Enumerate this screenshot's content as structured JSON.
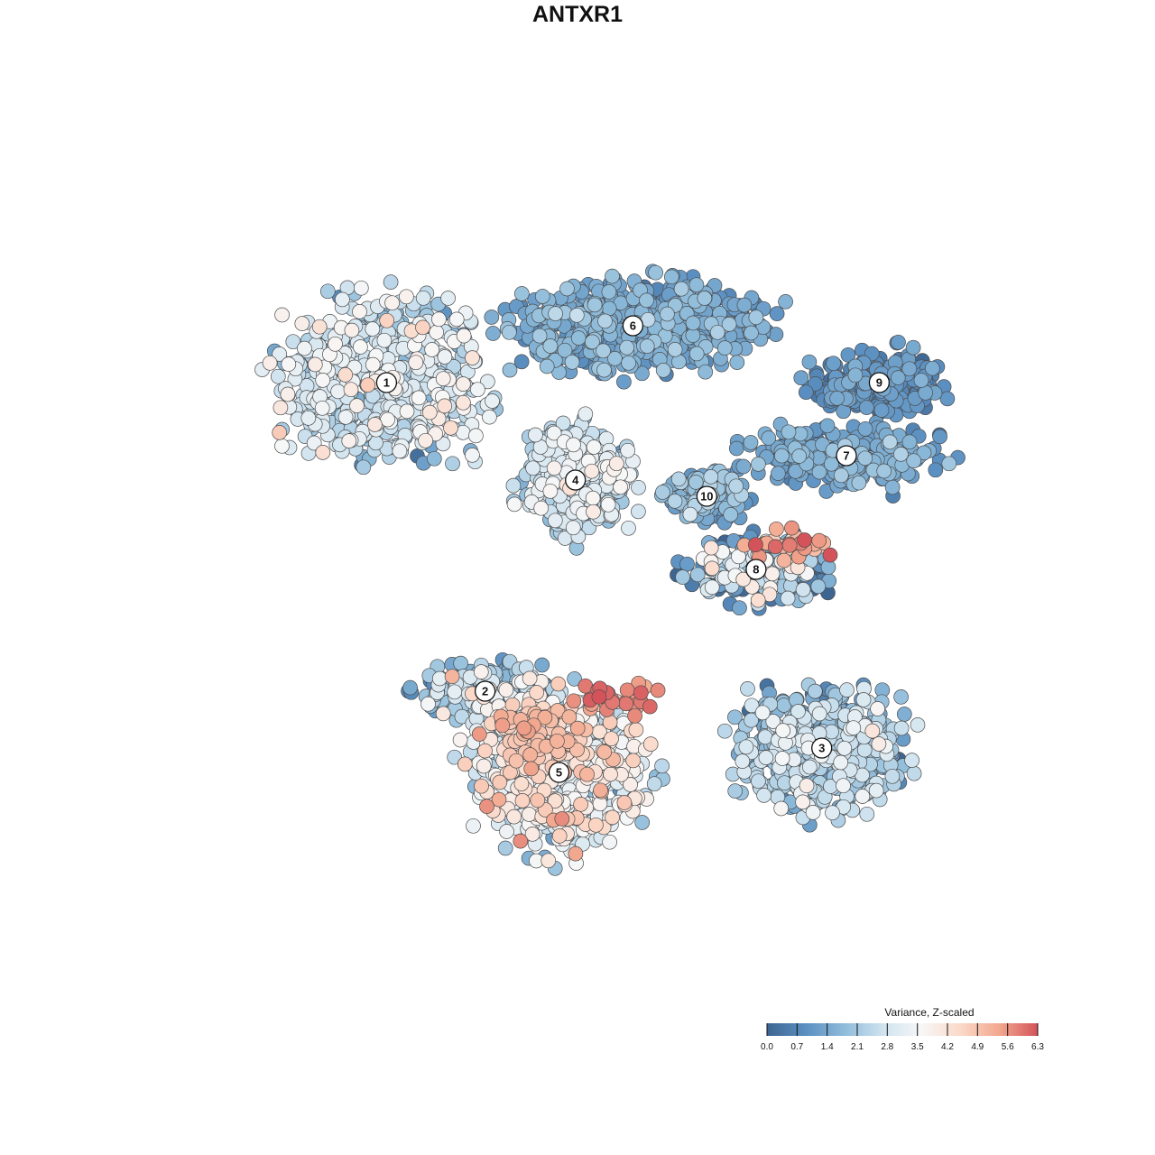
{
  "chart_data": {
    "type": "scatter",
    "title": "ANTXR1",
    "legend": {
      "title": "Variance, Z-scaled",
      "placement": "bottom-right",
      "ticks": [
        "0.0",
        "0.7",
        "1.4",
        "2.1",
        "2.8",
        "3.5",
        "4.2",
        "4.9",
        "5.6",
        "6.3"
      ],
      "range": [
        0,
        6.3
      ],
      "colors": [
        "#3d6591",
        "#5a8fc1",
        "#8fbcda",
        "#cfe3ef",
        "#f7f7f7",
        "#fbd9c9",
        "#f2a88e",
        "#d4535b"
      ]
    },
    "clusters": [
      {
        "label": "1",
        "cx": -5.2,
        "cy": 4.8,
        "rx": 3.2,
        "ry": 2.6,
        "n": 520,
        "mean": 2.7,
        "sd": 0.75
      },
      {
        "label": "2",
        "cx": -2.8,
        "cy": -2.8,
        "rx": 2.2,
        "ry": 0.8,
        "n": 170,
        "mean": 2.1,
        "sd": 1.0
      },
      {
        "label": "3",
        "cx": 5.4,
        "cy": -4.2,
        "rx": 2.6,
        "ry": 1.9,
        "n": 480,
        "mean": 2.0,
        "sd": 0.75
      },
      {
        "label": "4",
        "cx": -0.6,
        "cy": 2.4,
        "rx": 1.7,
        "ry": 1.7,
        "n": 320,
        "mean": 2.6,
        "sd": 0.65
      },
      {
        "label": "5",
        "cx": -1.0,
        "cy": -4.8,
        "rx": 2.6,
        "ry": 2.4,
        "n": 600,
        "mean": 3.2,
        "sd": 0.9
      },
      {
        "label": "6",
        "cx": 0.8,
        "cy": 6.2,
        "rx": 3.8,
        "ry": 1.4,
        "n": 520,
        "mean": 1.3,
        "sd": 0.45
      },
      {
        "label": "7",
        "cx": 6.0,
        "cy": 3.0,
        "rx": 2.8,
        "ry": 0.9,
        "n": 260,
        "mean": 1.2,
        "sd": 0.4
      },
      {
        "label": "8",
        "cx": 3.8,
        "cy": 0.2,
        "rx": 2.2,
        "ry": 1.0,
        "n": 220,
        "mean": 1.5,
        "sd": 1.4
      },
      {
        "label": "9",
        "cx": 6.8,
        "cy": 4.8,
        "rx": 2.0,
        "ry": 0.9,
        "n": 200,
        "mean": 0.9,
        "sd": 0.35
      },
      {
        "label": "10",
        "cx": 2.6,
        "cy": 2.0,
        "rx": 1.2,
        "ry": 0.8,
        "n": 110,
        "mean": 1.5,
        "sd": 0.5
      }
    ],
    "hotspots": [
      {
        "near": "5",
        "cx": -1.5,
        "cy": -3.9,
        "rx": 1.3,
        "ry": 0.9,
        "n": 70,
        "mean": 4.7,
        "sd": 0.4
      },
      {
        "near": "5",
        "cx": 0.5,
        "cy": -3.0,
        "rx": 1.2,
        "ry": 0.5,
        "n": 30,
        "mean": 5.8,
        "sd": 0.3
      },
      {
        "near": "8",
        "cx": 4.6,
        "cy": 0.8,
        "rx": 1.2,
        "ry": 0.25,
        "n": 28,
        "mean": 5.4,
        "sd": 0.6
      }
    ],
    "xlim": [
      -10,
      10
    ],
    "ylim": [
      -10,
      10
    ],
    "grid": false
  }
}
